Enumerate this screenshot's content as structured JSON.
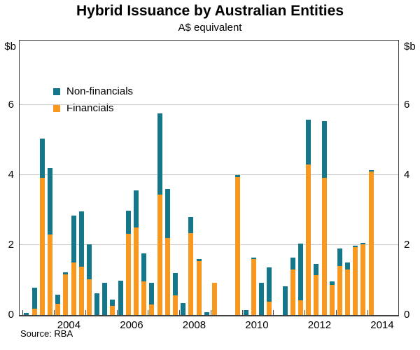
{
  "chart_data": {
    "type": "bar",
    "stacked": true,
    "title": "Hybrid Issuance by Australian Entities",
    "subtitle": "A$ equivalent",
    "unit_label": "$b",
    "source": "Source: RBA",
    "x": [
      "2003 Q1",
      "2003 Q2",
      "2003 Q3",
      "2003 Q4",
      "2004 Q1",
      "2004 Q2",
      "2004 Q3",
      "2004 Q4",
      "2005 Q1",
      "2005 Q2",
      "2005 Q3",
      "2005 Q4",
      "2006 Q1",
      "2006 Q2",
      "2006 Q3",
      "2006 Q4",
      "2007 Q1",
      "2007 Q2",
      "2007 Q3",
      "2007 Q4",
      "2008 Q1",
      "2008 Q2",
      "2008 Q3",
      "2008 Q4",
      "2009 Q1",
      "2009 Q2",
      "2009 Q3",
      "2009 Q4",
      "2010 Q1",
      "2010 Q2",
      "2010 Q3",
      "2010 Q4",
      "2011 Q1",
      "2011 Q2",
      "2011 Q3",
      "2011 Q4",
      "2012 Q1",
      "2012 Q2",
      "2012 Q3",
      "2012 Q4",
      "2013 Q1",
      "2013 Q2",
      "2013 Q3",
      "2013 Q4",
      "2014 Q1"
    ],
    "series": [
      {
        "name": "Non-financials",
        "color": "#14788a",
        "values": [
          0.06,
          0.6,
          1.12,
          1.9,
          0.26,
          0.05,
          1.35,
          1.57,
          1.0,
          0.63,
          0.93,
          0.18,
          0.98,
          0.65,
          1.06,
          0.8,
          0.62,
          2.32,
          1.4,
          0.63,
          0.35,
          0.45,
          0.05,
          0.08,
          0,
          0,
          0,
          0.05,
          0.15,
          0.05,
          0.92,
          0.98,
          0,
          0.82,
          0.34,
          1.62,
          1.28,
          0.32,
          1.63,
          0.1,
          0.5,
          0.2,
          0.05,
          0.05,
          0.05
        ]
      },
      {
        "name": "Financials",
        "color": "#f8981f",
        "values": [
          0,
          0.18,
          3.92,
          2.3,
          0.33,
          1.17,
          1.5,
          1.39,
          1.03,
          0,
          0,
          0.26,
          0,
          2.33,
          2.5,
          0.97,
          0.31,
          3.45,
          2.21,
          0.57,
          0,
          2.35,
          1.55,
          0,
          0.92,
          0,
          0,
          3.95,
          0,
          1.6,
          0,
          0.39,
          0,
          0,
          1.31,
          0.43,
          4.3,
          1.15,
          3.92,
          0.87,
          1.4,
          1.3,
          1.94,
          2.02,
          4.1
        ]
      }
    ],
    "ylim": [
      0,
      7.9
    ],
    "yticks": [
      0,
      2,
      4,
      6
    ],
    "xtick_labels": [
      "2004",
      "2006",
      "2008",
      "2010",
      "2012",
      "2014"
    ],
    "x_start_year": 2003,
    "grid": "horizontal",
    "legend_position": "top-left-inside"
  }
}
